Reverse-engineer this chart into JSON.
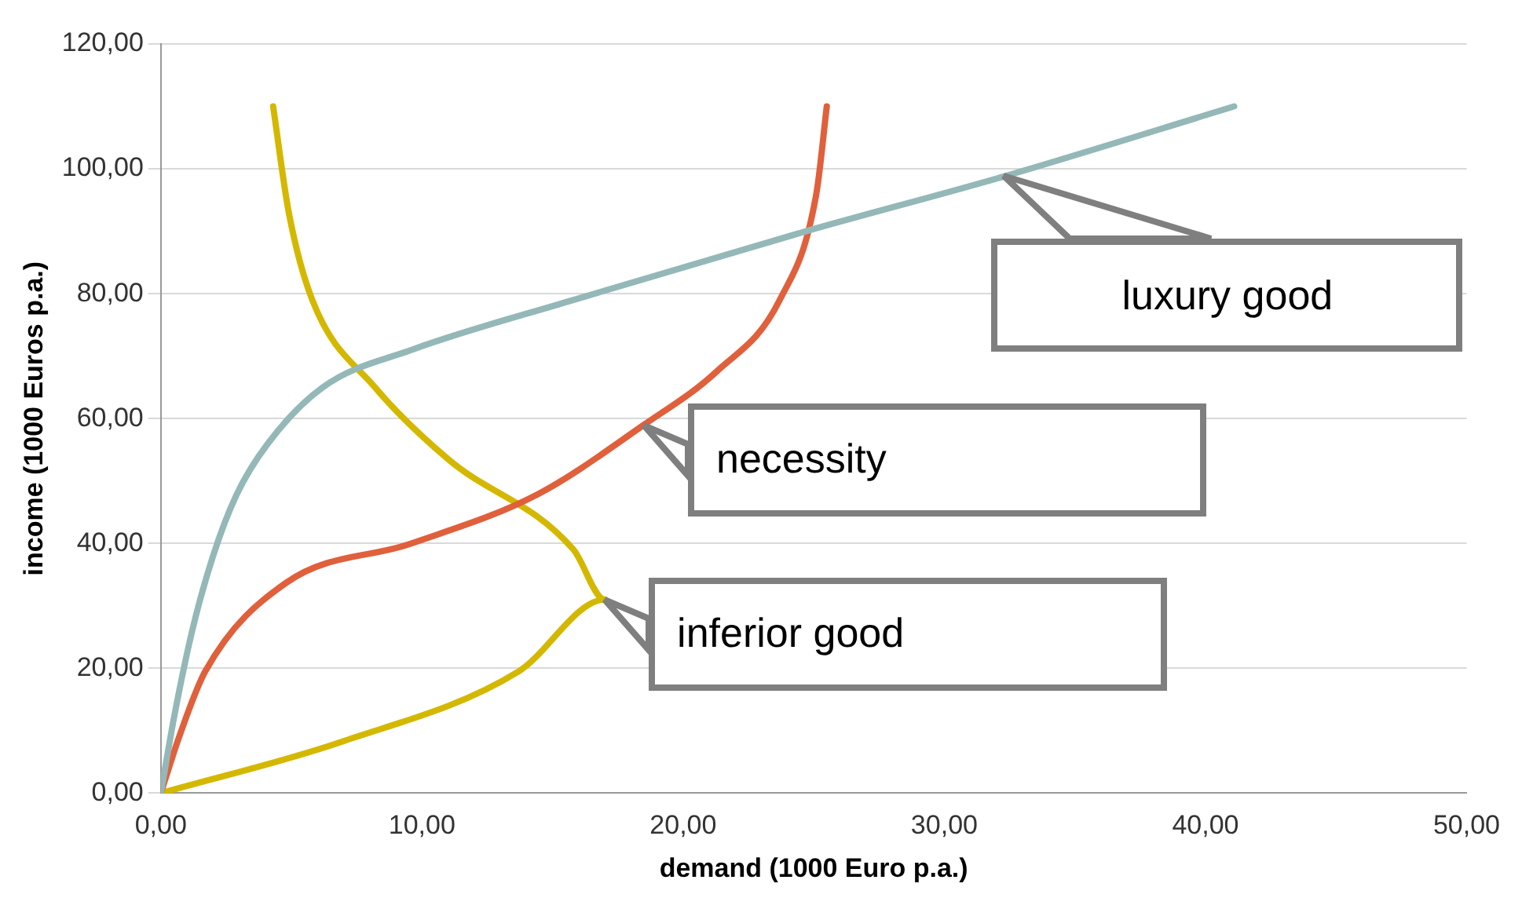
{
  "chart_data": {
    "type": "line",
    "xlabel": "demand (1000 Euro p.a.)",
    "ylabel": "income (1000 Euros p.a.)",
    "xlim": [
      0,
      50
    ],
    "xticks": [
      {
        "value": 0,
        "label": "0,00"
      },
      {
        "value": 10,
        "label": "10,00"
      },
      {
        "value": 20,
        "label": "20,00"
      },
      {
        "value": 30,
        "label": "30,00"
      },
      {
        "value": 40,
        "label": "40,00"
      },
      {
        "value": 50,
        "label": "50,00"
      }
    ],
    "ylim": [
      0,
      120
    ],
    "yticks": [
      {
        "value": 0,
        "label": "0,00"
      },
      {
        "value": 20,
        "label": "20,00"
      },
      {
        "value": 40,
        "label": "40,00"
      },
      {
        "value": 60,
        "label": "60,00"
      },
      {
        "value": 80,
        "label": "80,00"
      },
      {
        "value": 100,
        "label": "100,00"
      },
      {
        "value": 120,
        "label": "120,00"
      }
    ],
    "grid": "y",
    "legend": false,
    "marker": "none",
    "line_style": "solid",
    "series": [
      {
        "color": "#94b8b8",
        "x": [
          0,
          0.5,
          1.2,
          2.0,
          2.9,
          4.1,
          6.2,
          9.6,
          15.8,
          24.7,
          32.3,
          41.1
        ],
        "values": [
          0,
          12,
          26,
          38,
          47.8,
          56,
          65,
          71,
          79,
          90,
          98.8,
          110
        ]
      },
      {
        "color": "#e0603c",
        "x": [
          0,
          0.7,
          1.7,
          4.8,
          9.6,
          14.4,
          18.5,
          21.3,
          23.7,
          25.1,
          25.5
        ],
        "values": [
          0,
          9,
          19.5,
          33.7,
          40,
          47.8,
          59,
          67.6,
          79,
          96,
          110
        ]
      },
      {
        "color": "#d4b800",
        "x": [
          0,
          6.9,
          13.7,
          17.0,
          15.8,
          11.0,
          8.2,
          5.8,
          4.9,
          4.3
        ],
        "values": [
          0,
          8.2,
          19.5,
          31,
          39,
          53.5,
          65,
          79,
          93,
          110
        ]
      }
    ],
    "annotations": [
      {
        "text": "luxury good",
        "x": 32.3,
        "y": 98.8
      },
      {
        "text": "necessity",
        "x": 18.5,
        "y": 59
      },
      {
        "text": "inferior good",
        "x": 17.0,
        "y": 31
      }
    ]
  }
}
